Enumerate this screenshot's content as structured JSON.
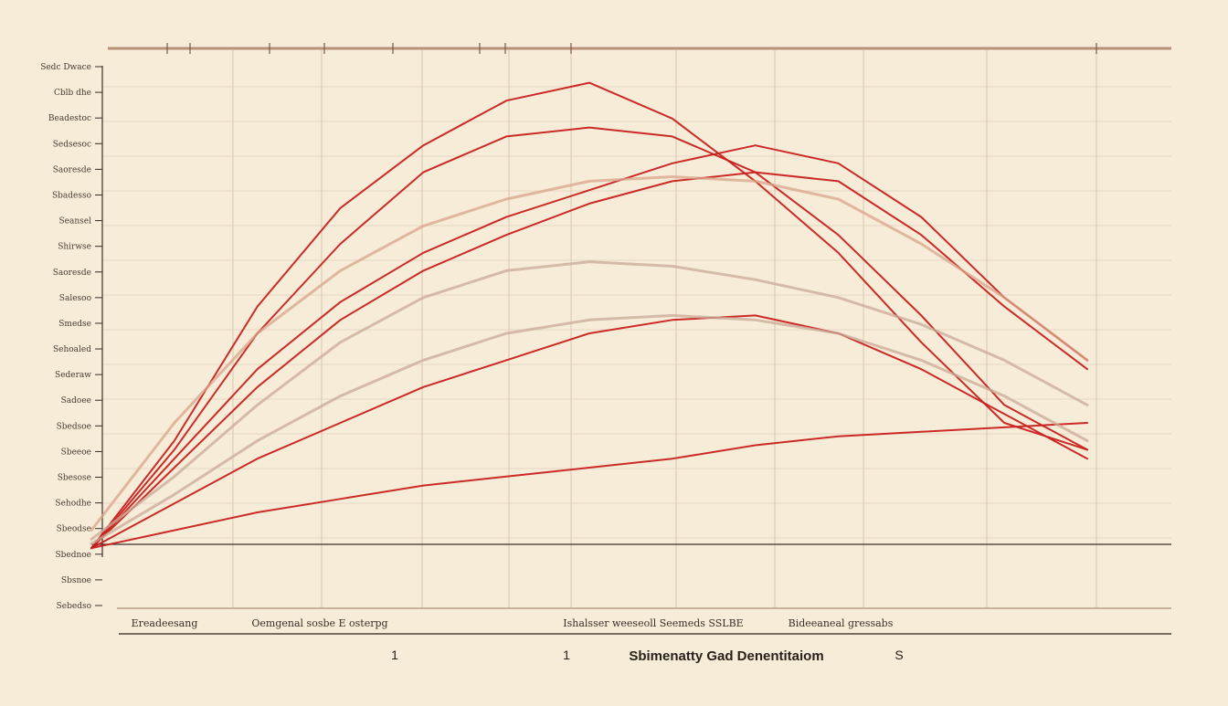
{
  "chart_data": {
    "type": "line",
    "title": "",
    "xlabel": "Sbimenatty Gad Denentitaiom",
    "ylabel": "",
    "x": [
      0,
      1,
      2,
      3,
      4,
      5,
      6,
      7,
      8,
      9,
      10,
      11,
      12
    ],
    "xlim": [
      0,
      12
    ],
    "ylim": [
      0,
      100
    ],
    "grid": true,
    "legend": "none",
    "y_tick_labels": [
      "Sedc Dwace",
      "Cblb dhe",
      "Beadestoc",
      "Sedsesoc",
      "Saoresde",
      "Sbadesso",
      "Seansel",
      "Shirwse",
      "Saoresde",
      "Salesoo",
      "Smedse",
      "Sehoaled",
      "Sederaw",
      "Sadoee",
      "Sbedsoe",
      "Sbeeoe",
      "Sbesose",
      "Sehodhe",
      "Sbeodse",
      "Sbednoe",
      "Sbsnoe",
      "Sebedso"
    ],
    "x_category_labels": [
      "Ereadeesang",
      "Oemgenal sosbe  E osterpg",
      "Ishalsser weeseoll Seemeds  SSLBE",
      "Bideeaneal gressabs"
    ],
    "x_number_labels": [
      "1",
      "1",
      "S"
    ],
    "series": [
      {
        "color": "#c8201e",
        "values": [
          2,
          26,
          56,
          78,
          92,
          102,
          106,
          98,
          84,
          68,
          48,
          30,
          24
        ]
      },
      {
        "color": "#c8201e",
        "values": [
          2,
          24,
          50,
          70,
          86,
          94,
          96,
          94,
          86,
          72,
          54,
          34,
          24
        ]
      },
      {
        "color": "#c8201e",
        "values": [
          2,
          22,
          42,
          57,
          68,
          76,
          82,
          88,
          92,
          88,
          76,
          58,
          44
        ]
      },
      {
        "color": "#c8201e",
        "values": [
          2,
          20,
          38,
          53,
          64,
          72,
          79,
          84,
          86,
          84,
          72,
          56,
          42
        ]
      },
      {
        "color": "#c8201e",
        "values": [
          2,
          12,
          22,
          30,
          38,
          44,
          50,
          53,
          54,
          50,
          42,
          32,
          22
        ]
      },
      {
        "color": "#c8201e",
        "values": [
          2,
          6,
          10,
          13,
          16,
          18,
          20,
          22,
          25,
          27,
          28,
          29,
          30
        ]
      },
      {
        "color": "#d9a48c",
        "values": [
          6,
          30,
          50,
          64,
          74,
          80,
          84,
          85,
          84,
          80,
          70,
          58,
          44
        ]
      },
      {
        "color": "#c9a998",
        "values": [
          4,
          18,
          34,
          48,
          58,
          64,
          66,
          65,
          62,
          58,
          52,
          44,
          34
        ]
      },
      {
        "color": "#c9a998",
        "values": [
          3,
          14,
          26,
          36,
          44,
          50,
          53,
          54,
          53,
          50,
          44,
          36,
          26
        ]
      }
    ]
  }
}
